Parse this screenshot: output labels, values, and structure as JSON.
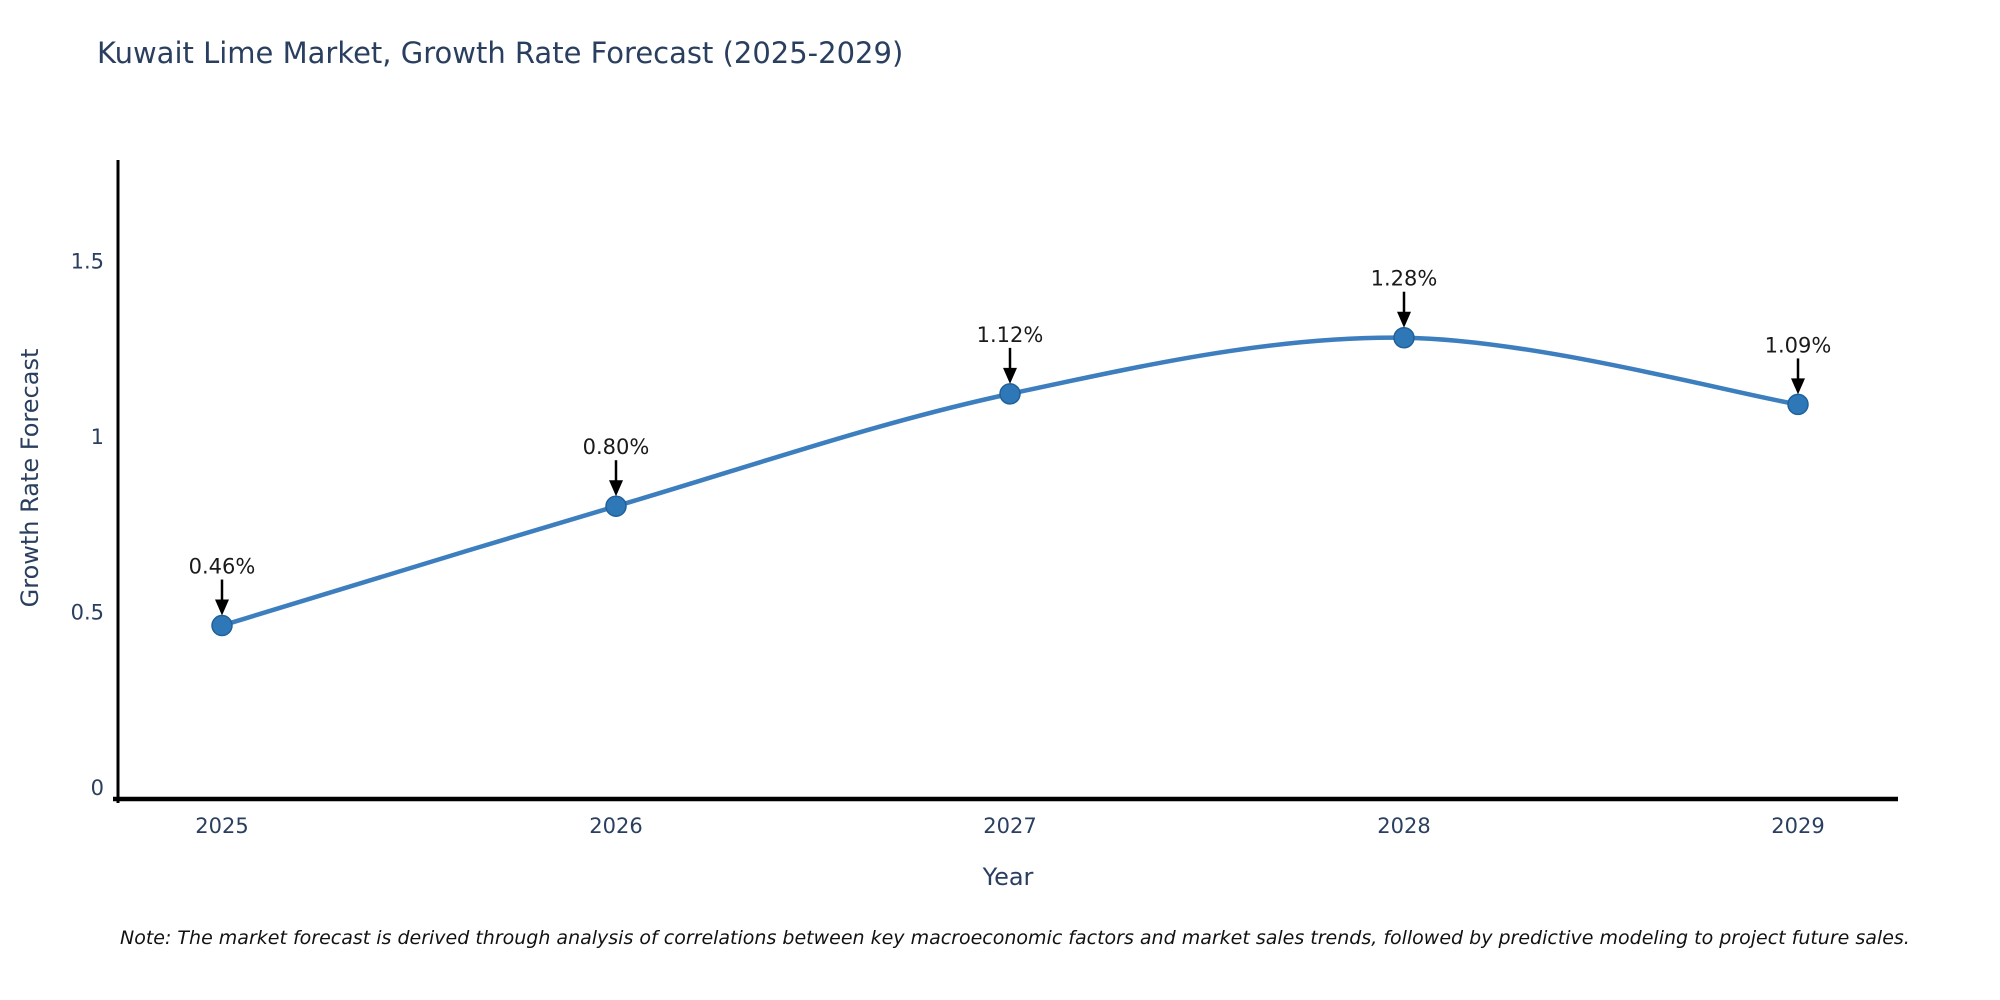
{
  "chart": {
    "title": "Kuwait Lime Market, Growth Rate Forecast (2025-2029)",
    "ylabel": "Growth Rate Forecast",
    "xlabel": "Year",
    "note": "Note: The market forecast is derived through analysis of correlations between key macroeconomic factors and market sales trends, followed by predictive modeling to project future sales."
  },
  "chart_data": {
    "type": "line",
    "title": "Kuwait Lime Market, Growth Rate Forecast (2025-2029)",
    "xlabel": "Year",
    "ylabel": "Growth Rate Forecast",
    "categories": [
      "2025",
      "2026",
      "2027",
      "2028",
      "2029"
    ],
    "values": [
      0.46,
      0.8,
      1.12,
      1.28,
      1.09
    ],
    "point_labels": [
      "0.46%",
      "0.80%",
      "1.12%",
      "1.28%",
      "1.09%"
    ],
    "y_ticks": [
      0,
      0.5,
      1,
      1.5
    ],
    "y_tick_labels": [
      "0",
      "0.5",
      "1",
      "1.5"
    ],
    "ylim": [
      -0.04,
      1.82
    ],
    "grid": false,
    "legend": "none",
    "line_shape": "spline",
    "annotation_style": "black-down-arrow",
    "colors": {
      "line": "#3d7ebf",
      "marker_fill": "#2f78b8",
      "marker_edge": "#20619b",
      "axis_line": "#000000",
      "tick_label": "#2a3f5f",
      "title_text": "#2a3f5f",
      "annotation_text": "#1a1a1a",
      "annotation_arrow": "#000000",
      "note_text": "#111111",
      "background": "#ffffff"
    }
  }
}
